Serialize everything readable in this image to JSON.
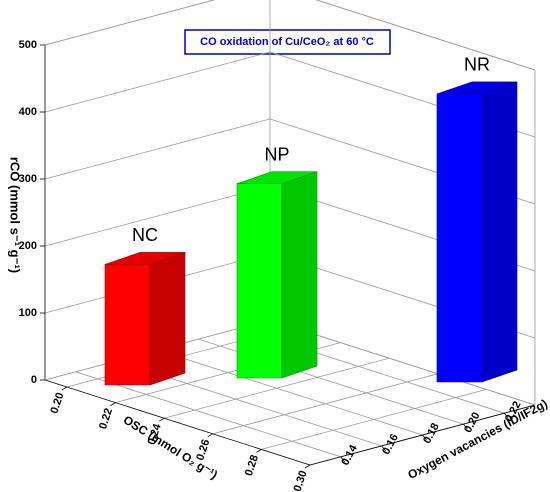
{
  "chart_data": {
    "type": "bar3d",
    "title": "CO oxidation of Cu/CeO₂ at 60 °C",
    "y_label": "rCO (mmol s⁻¹ g⁻¹)",
    "x_label": "OSC (mmol O₂ g⁻¹)",
    "z_label": "Oxygen vacancies (ID/IF2g)",
    "categories": [
      "NC",
      "NP",
      "NR"
    ],
    "values": [
      180,
      290,
      430
    ],
    "colors": [
      "#ff0000",
      "#00ff00",
      "#0000ff"
    ],
    "ylim": [
      0,
      500
    ],
    "yticks": [
      0,
      100,
      200,
      300,
      400,
      500
    ],
    "xlim": [
      0.191,
      0.3
    ],
    "xticks": [
      {
        "value": 0.2,
        "label": "0.20"
      },
      0.22,
      0.24,
      0.26,
      0.28,
      {
        "value": 0.3,
        "label": "0.30"
      }
    ],
    "zlim": [
      0.125,
      0.235
    ],
    "zticks": [
      0.14,
      0.16,
      0.18,
      {
        "value": 0.2,
        "label": "0.20"
      },
      0.22
    ],
    "grid": true
  }
}
